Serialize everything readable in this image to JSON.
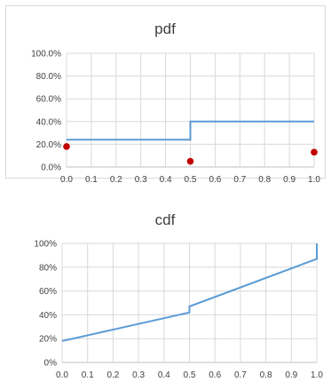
{
  "chart_data": [
    {
      "type": "line",
      "title": "pdf",
      "xlabel": "",
      "ylabel": "",
      "xlim": [
        0.0,
        1.0
      ],
      "ylim": [
        0,
        1
      ],
      "grid": true,
      "x_ticks": [
        "0.0",
        "0.1",
        "0.2",
        "0.3",
        "0.4",
        "0.5",
        "0.6",
        "0.7",
        "0.8",
        "0.9",
        "1.0"
      ],
      "y_ticks": [
        "0.0%",
        "20.0%",
        "40.0%",
        "60.0%",
        "80.0%",
        "100.0%"
      ],
      "series": [
        {
          "kind": "step-line",
          "color": "#5b9bd5",
          "points": [
            [
              0.0,
              0.24
            ],
            [
              0.5,
              0.24
            ],
            [
              0.5,
              0.4
            ],
            [
              1.0,
              0.4
            ]
          ]
        },
        {
          "kind": "points",
          "color": "#c00000",
          "points": [
            [
              0.0,
              0.18
            ],
            [
              0.5,
              0.05
            ],
            [
              1.0,
              0.13
            ]
          ]
        }
      ]
    },
    {
      "type": "line",
      "title": "cdf",
      "xlabel": "",
      "ylabel": "",
      "xlim": [
        0.0,
        1.0
      ],
      "ylim": [
        0,
        1
      ],
      "grid": true,
      "x_ticks": [
        "0.0",
        "0.1",
        "0.2",
        "0.3",
        "0.4",
        "0.5",
        "0.6",
        "0.7",
        "0.8",
        "0.9",
        "1.0"
      ],
      "y_ticks": [
        "0%",
        "20%",
        "40%",
        "60%",
        "80%",
        "100%"
      ],
      "series": [
        {
          "kind": "line",
          "color": "#5b9bd5",
          "points": [
            [
              0.0,
              0.18
            ],
            [
              0.5,
              0.42
            ],
            [
              0.5,
              0.47
            ],
            [
              1.0,
              0.87
            ],
            [
              1.0,
              1.0
            ]
          ]
        }
      ]
    }
  ]
}
